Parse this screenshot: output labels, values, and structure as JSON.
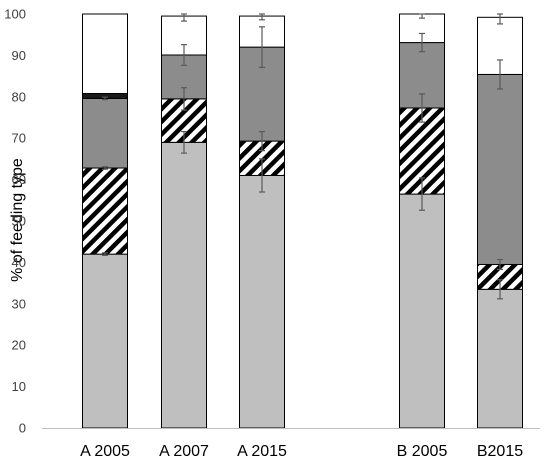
{
  "chart_data": {
    "type": "bar",
    "stacked": true,
    "ylabel": "% of feeding type",
    "ylim": [
      0,
      100
    ],
    "yticks": [
      0,
      10,
      20,
      30,
      40,
      50,
      60,
      70,
      80,
      90,
      100
    ],
    "categories": [
      "A 2005",
      "A 2007",
      "A 2015",
      "B 2005",
      "B2015"
    ],
    "category_gap_after": 2,
    "grid": false,
    "legend": "none",
    "series": [
      {
        "fill": "light-gray",
        "color": "#bfbfbf",
        "values": [
          42,
          69,
          61,
          56.5,
          33.5
        ],
        "errors": [
          0.3,
          2.6,
          4,
          3.9,
          2.3
        ]
      },
      {
        "fill": "diagonal-hatch",
        "color": "#000000",
        "values": [
          20.8,
          10.5,
          8.3,
          20.8,
          6
        ],
        "errors": [
          0.3,
          2.7,
          2.3,
          3.4,
          1.2
        ]
      },
      {
        "fill": "dark-gray",
        "color": "#8c8c8c",
        "values": [
          16.8,
          10.6,
          22.7,
          15.8,
          45.9
        ],
        "errors": [
          0.3,
          2.5,
          4.9,
          2.2,
          3.5
        ]
      },
      {
        "fill": "black",
        "color": "#1a1a1a",
        "values": [
          1.2,
          0,
          0,
          0,
          0
        ],
        "errors": [
          0,
          0,
          0,
          0,
          0
        ]
      },
      {
        "fill": "white",
        "color": "#ffffff",
        "values": [
          19.2,
          9.4,
          7.5,
          6.9,
          13.8
        ],
        "errors": [
          0,
          1.2,
          0.9,
          1,
          1.6
        ]
      }
    ]
  }
}
